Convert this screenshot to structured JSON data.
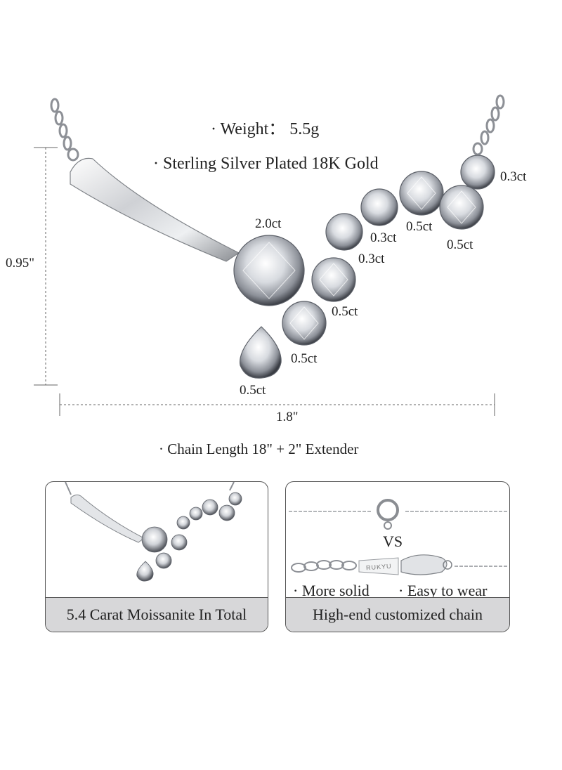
{
  "specs": {
    "weight": "· Weight： 5.5g",
    "material": "· Sterling Silver Plated 18K Gold",
    "chain_length": "· Chain Length 18\" + 2\" Extender"
  },
  "dimensions": {
    "height": "0.95\"",
    "width": "1.8\""
  },
  "stone_labels": {
    "center": "2.0ct",
    "top_right": "0.3ct",
    "upper_right_a": "0.5ct",
    "upper_right_b": "0.5ct",
    "mid_a": "0.3ct",
    "mid_b": "0.3ct",
    "right_of_center": "0.5ct",
    "below_center": "0.5ct",
    "pear": "0.5ct"
  },
  "panel_left": {
    "caption": "5.4 Carat Moissanite In Total"
  },
  "panel_right": {
    "brand_tag": "RUKYU",
    "vs": "VS",
    "feature_1": "· More solid",
    "feature_2": "· Easy to wear",
    "caption": "High-end customized chain"
  }
}
